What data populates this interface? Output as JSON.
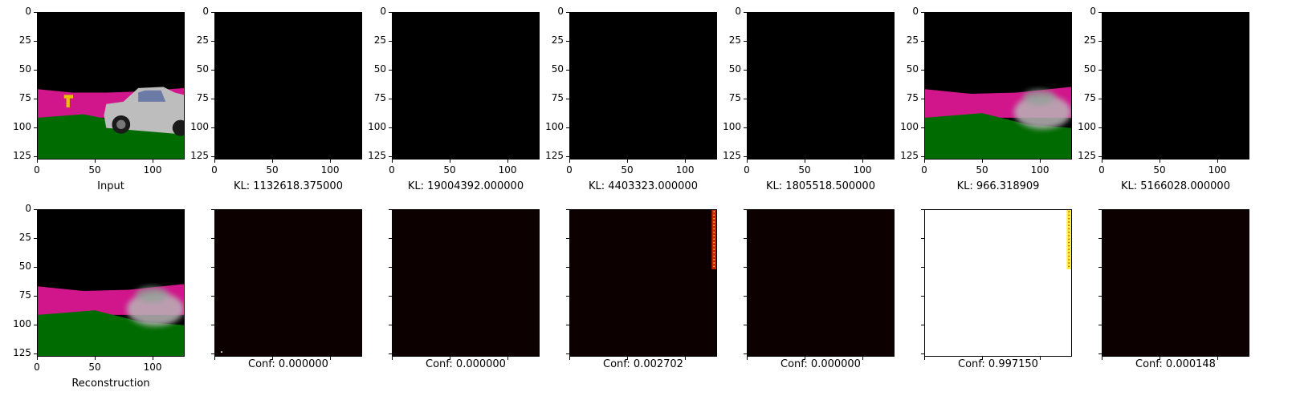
{
  "figure": {
    "top_row": [
      {
        "caption": "Input",
        "image": "input"
      },
      {
        "caption": "KL: 1132618.375000",
        "image": "black"
      },
      {
        "caption": "KL: 19004392.000000",
        "image": "black"
      },
      {
        "caption": "KL: 4403323.000000",
        "image": "black"
      },
      {
        "caption": "KL: 1805518.500000",
        "image": "black"
      },
      {
        "caption": "KL: 966.318909",
        "image": "blurry"
      },
      {
        "caption": "KL: 5166028.000000",
        "image": "black"
      }
    ],
    "bottom_row": [
      {
        "caption": "Reconstruction",
        "image": "blurry",
        "ticks": "labeled"
      },
      {
        "caption": "Conf: 0.000000",
        "image": "heat_dark_dot",
        "ticks": "unlabeled"
      },
      {
        "caption": "Conf: 0.000000",
        "image": "heat_dark",
        "ticks": "unlabeled"
      },
      {
        "caption": "Conf: 0.002702",
        "image": "heat_dark_stripe",
        "ticks": "unlabeled"
      },
      {
        "caption": "Conf: 0.000000",
        "image": "heat_dark",
        "ticks": "unlabeled"
      },
      {
        "caption": "Conf: 0.997150",
        "image": "heat_white_stripe",
        "ticks": "unlabeled"
      },
      {
        "caption": "Conf: 0.000148",
        "image": "heat_dark",
        "ticks": "unlabeled"
      }
    ],
    "colors": {
      "sky": "#000000",
      "road": "#d0168a",
      "grass": "#006b00",
      "heat_low": "#0d0000",
      "heat_high": "#ffffff",
      "stripe_red": "#cc2000",
      "stripe_yellow": "#ffee44"
    }
  },
  "chart_data": {
    "type": "heatmap",
    "axes": {
      "xlim": [
        0,
        127
      ],
      "ylim": [
        127,
        0
      ],
      "xticks": [
        0,
        50,
        100
      ],
      "yticks": [
        0,
        25,
        50,
        75,
        100,
        125
      ]
    },
    "panels_top": [
      {
        "label": "Input"
      },
      {
        "label": "KL: 1132618.375000",
        "kl": 1132618.375
      },
      {
        "label": "KL: 19004392.000000",
        "kl": 19004392.0
      },
      {
        "label": "KL: 4403323.000000",
        "kl": 4403323.0
      },
      {
        "label": "KL: 1805518.500000",
        "kl": 1805518.5
      },
      {
        "label": "KL: 966.318909",
        "kl": 966.318909
      },
      {
        "label": "KL: 5166028.000000",
        "kl": 5166028.0
      }
    ],
    "panels_bottom": [
      {
        "label": "Reconstruction"
      },
      {
        "label": "Conf: 0.000000",
        "conf": 0.0
      },
      {
        "label": "Conf: 0.000000",
        "conf": 0.0
      },
      {
        "label": "Conf: 0.002702",
        "conf": 0.002702
      },
      {
        "label": "Conf: 0.000000",
        "conf": 0.0
      },
      {
        "label": "Conf: 0.997150",
        "conf": 0.99715
      },
      {
        "label": "Conf: 0.000148",
        "conf": 0.000148
      }
    ]
  }
}
